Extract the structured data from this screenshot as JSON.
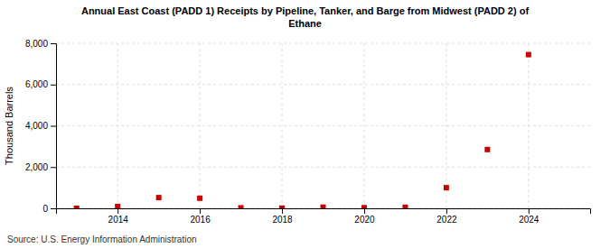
{
  "chart_data": {
    "type": "scatter",
    "title": "Annual East Coast (PADD 1) Receipts by Pipeline, Tanker, and Barge from Midwest (PADD 2) of\nEthane",
    "y_label": "Thousand Barrels",
    "source": "Source: U.S. Energy Information Administration",
    "x": [
      2013,
      2014,
      2015,
      2016,
      2017,
      2018,
      2019,
      2020,
      2021,
      2022,
      2023,
      2024
    ],
    "values": [
      0,
      90,
      520,
      490,
      25,
      10,
      55,
      30,
      50,
      1000,
      2850,
      7450
    ],
    "color": "#cc0000",
    "marker": "square",
    "xlim": [
      2012.5,
      2025.5
    ],
    "xticks": [
      2014,
      2016,
      2018,
      2020,
      2022,
      2024
    ],
    "ylim": [
      0,
      8000
    ],
    "yticks": [
      0,
      {
        "value": 2000,
        "label": "2,000"
      },
      {
        "value": 4000,
        "label": "4,000"
      },
      {
        "value": 6000,
        "label": "6,000"
      },
      {
        "value": 8000,
        "label": "8,000"
      }
    ],
    "grid": true
  }
}
